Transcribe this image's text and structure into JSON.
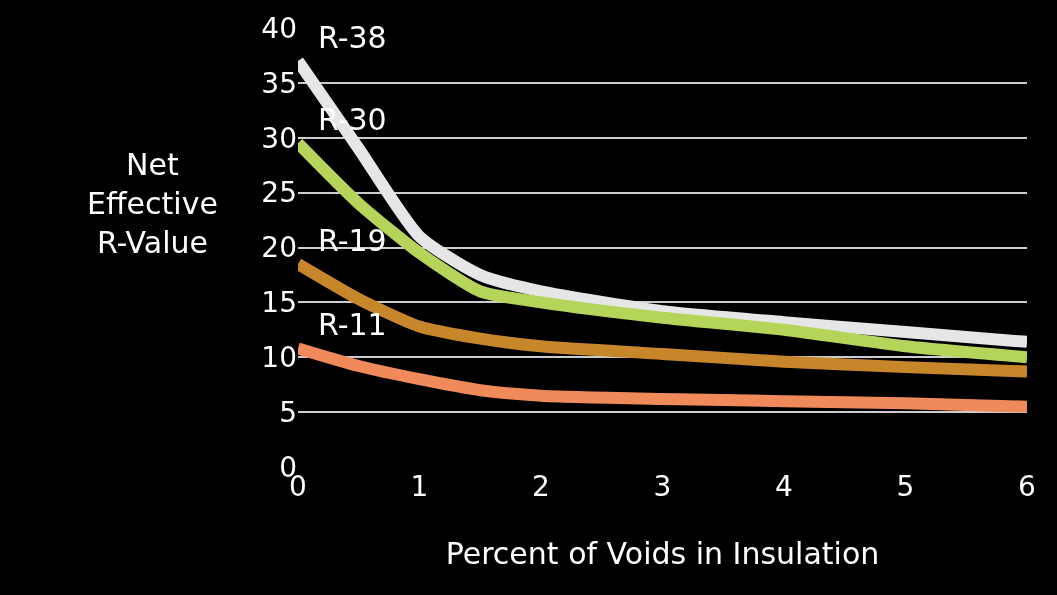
{
  "chart_data": {
    "type": "line",
    "xlabel": "Percent of Voids in Insulation",
    "ylabel": "Net Effective R-Value",
    "x": [
      0,
      0.5,
      1,
      1.5,
      2,
      3,
      4,
      5,
      6
    ],
    "series": [
      {
        "name": "R-38",
        "color": "#e6e6e6",
        "values": [
          37,
          29,
          21,
          17.5,
          16,
          14.2,
          13.2,
          12.3,
          11.4
        ]
      },
      {
        "name": "R-30",
        "color": "#b5d55a",
        "values": [
          29.5,
          24,
          19.5,
          16,
          15,
          13.6,
          12.5,
          11,
          10
        ]
      },
      {
        "name": "R-19",
        "color": "#c8862a",
        "values": [
          18.5,
          15.3,
          12.8,
          11.7,
          11,
          10.3,
          9.6,
          9.1,
          8.7
        ]
      },
      {
        "name": "R-11",
        "color": "#f08a5a",
        "values": [
          10.8,
          9.2,
          8,
          7,
          6.5,
          6.2,
          6,
          5.8,
          5.5
        ]
      }
    ],
    "xlim": [
      0,
      6
    ],
    "xticks": [
      0,
      1,
      2,
      3,
      4,
      5,
      6
    ],
    "ylim": [
      0,
      40
    ],
    "yticks": [
      0,
      5,
      10,
      15,
      20,
      25,
      30,
      35,
      40
    ],
    "grid": "y",
    "legend": false
  }
}
